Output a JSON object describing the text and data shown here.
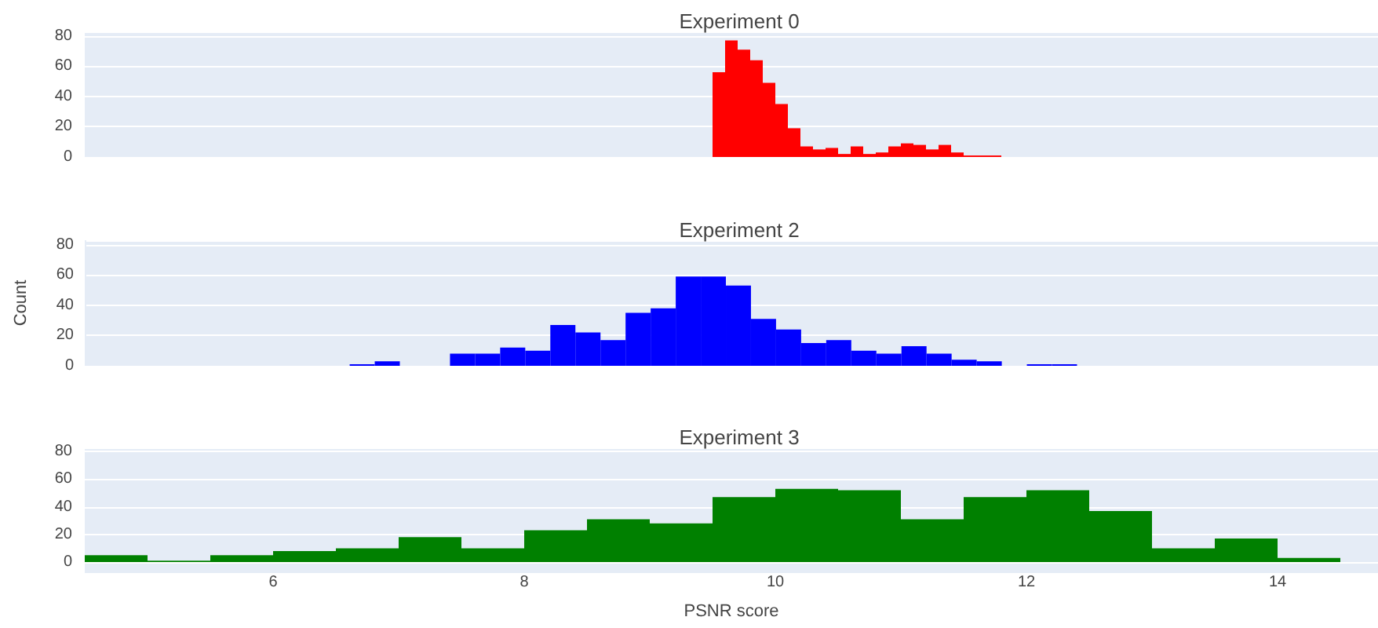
{
  "chart_data": [
    {
      "type": "histogram",
      "title": "Experiment 0",
      "color": "#ff0000",
      "bins": [
        9.5,
        9.6,
        9.7,
        9.8,
        9.9,
        10.0,
        10.1,
        10.2,
        10.3,
        10.4,
        10.5,
        10.6,
        10.7,
        10.8,
        10.9,
        11.0,
        11.1,
        11.2,
        11.3,
        11.4,
        11.5,
        11.6,
        11.7,
        11.8
      ],
      "values": [
        56,
        77,
        71,
        64,
        49,
        35,
        19,
        7,
        5,
        6,
        2,
        7,
        2,
        3,
        7,
        9,
        8,
        5,
        8,
        3,
        1,
        1,
        1
      ],
      "xlim": [
        4.5,
        14.8
      ],
      "xticks": [
        6,
        8,
        10,
        12,
        14
      ],
      "ylim": [
        0,
        83
      ],
      "yticks": [
        0,
        20,
        40,
        60,
        80
      ],
      "grid": "y",
      "tick_labels": "y"
    },
    {
      "type": "histogram",
      "title": "Experiment 2",
      "ylabel": "Count",
      "color": "#0000ff",
      "bins": [
        6.6,
        6.8,
        7.0,
        7.2,
        7.4,
        7.6,
        7.8,
        8.0,
        8.2,
        8.4,
        8.6,
        8.8,
        9.0,
        9.2,
        9.4,
        9.6,
        9.8,
        10.0,
        10.2,
        10.4,
        10.6,
        10.8,
        11.0,
        11.2,
        11.4,
        11.6,
        11.8,
        12.0,
        12.2,
        12.4
      ],
      "values": [
        1,
        3,
        0,
        0,
        8,
        8,
        12,
        10,
        27,
        22,
        17,
        35,
        38,
        59,
        59,
        53,
        31,
        24,
        15,
        17,
        10,
        8,
        13,
        8,
        4,
        3,
        0,
        1,
        1
      ],
      "xlim": [
        4.5,
        14.8
      ],
      "xticks": [
        6,
        8,
        10,
        12,
        14
      ],
      "ylim": [
        0,
        83
      ],
      "yticks": [
        0,
        20,
        40,
        60,
        80
      ],
      "grid": "y",
      "tick_labels": "y"
    },
    {
      "type": "histogram",
      "title": "Experiment 3",
      "xlabel": "PSNR score",
      "color": "#008000",
      "bins": [
        4.5,
        5.0,
        5.5,
        6.0,
        6.5,
        7.0,
        7.5,
        8.0,
        8.5,
        9.0,
        9.5,
        10.0,
        10.5,
        11.0,
        11.5,
        12.0,
        12.5,
        13.0,
        13.5,
        14.0,
        14.5
      ],
      "values": [
        5,
        1,
        5,
        8,
        10,
        18,
        10,
        23,
        31,
        28,
        47,
        53,
        52,
        31,
        47,
        52,
        37,
        10,
        17,
        3
      ],
      "xlim": [
        4.5,
        14.8
      ],
      "xticks": [
        6,
        8,
        10,
        12,
        14
      ],
      "ylim": [
        0,
        83
      ],
      "yticks": [
        0,
        20,
        40,
        60,
        80
      ],
      "grid": "y"
    }
  ]
}
